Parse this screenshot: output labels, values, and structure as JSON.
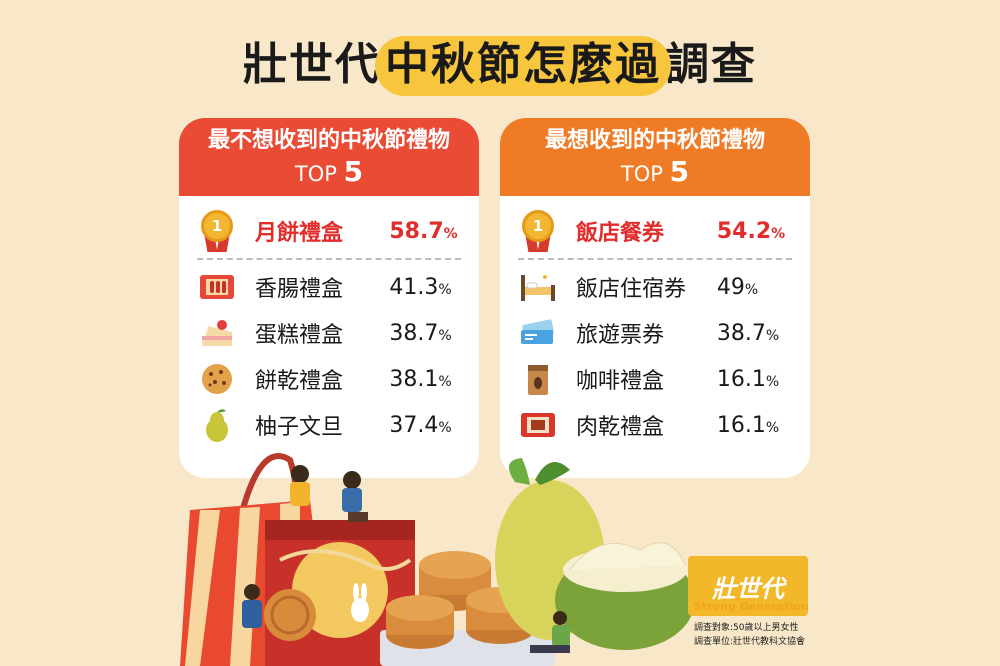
{
  "title": {
    "prefix": "壯世代",
    "highlight": "中秋節怎麼過",
    "suffix": "調查"
  },
  "left_panel": {
    "heading": "最不想收到的中秋節禮物",
    "top_label": "TOP",
    "top_num": "5",
    "items": [
      {
        "rank": "1",
        "name": "月餅禮盒",
        "value": "58.7",
        "icon": "medal-icon"
      },
      {
        "name": "香腸禮盒",
        "value": "41.3",
        "icon": "sausage-box-icon"
      },
      {
        "name": "蛋糕禮盒",
        "value": "38.7",
        "icon": "cake-icon"
      },
      {
        "name": "餅乾禮盒",
        "value": "38.1",
        "icon": "cookie-icon"
      },
      {
        "name": "柚子文旦",
        "value": "37.4",
        "icon": "pomelo-icon"
      }
    ]
  },
  "right_panel": {
    "heading": "最想收到的中秋節禮物",
    "top_label": "TOP",
    "top_num": "5",
    "items": [
      {
        "rank": "1",
        "name": "飯店餐券",
        "value": "54.2",
        "icon": "medal-icon"
      },
      {
        "name": "飯店住宿券",
        "value": "49",
        "icon": "hotel-bed-icon"
      },
      {
        "name": "旅遊票券",
        "value": "38.7",
        "icon": "ticket-icon"
      },
      {
        "name": "咖啡禮盒",
        "value": "16.1",
        "icon": "coffee-bag-icon"
      },
      {
        "name": "肉乾禮盒",
        "value": "16.1",
        "icon": "jerky-box-icon"
      }
    ]
  },
  "percent_sign": "%",
  "logo": {
    "mark": "壯世代",
    "sub": "Strong Generation"
  },
  "notes": {
    "target": "調查對象:50歲以上男女性",
    "unit": "調查單位:壯世代教科文協會"
  },
  "colors": {
    "background": "#f8e8c9",
    "left_header": "#e94b35",
    "right_header": "#f07b27",
    "highlight": "#f7c63c",
    "top_item": "#e22b2b"
  }
}
